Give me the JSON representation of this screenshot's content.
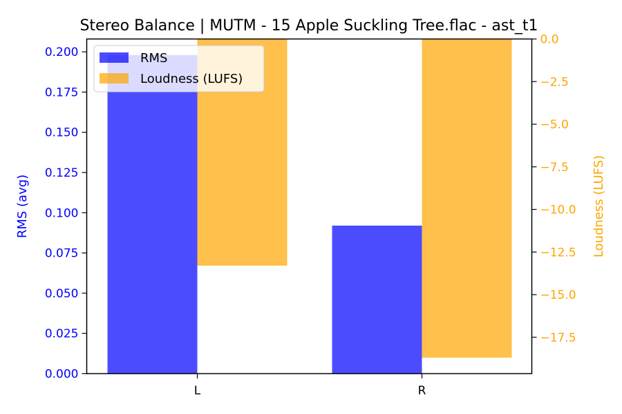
{
  "chart_data": {
    "type": "bar",
    "title": "Stereo Balance | MUTM - 15 Apple Suckling Tree.flac - ast_t1",
    "categories": [
      "L",
      "R"
    ],
    "series": [
      {
        "name": "RMS",
        "axis": "left",
        "values": [
          0.198,
          0.092
        ],
        "color": "#0000ff",
        "opacity": 0.7
      },
      {
        "name": "Loudness (LUFS)",
        "axis": "right",
        "values": [
          -13.3,
          -18.7
        ],
        "color": "#ffa500",
        "opacity": 0.7
      }
    ],
    "y_left": {
      "label": "RMS (avg)",
      "range": [
        0.0,
        0.208
      ],
      "ticks": [
        "0.000",
        "0.025",
        "0.050",
        "0.075",
        "0.100",
        "0.125",
        "0.150",
        "0.175",
        "0.200"
      ],
      "color": "#0000ff"
    },
    "y_right": {
      "label": "Loudness (LUFS)",
      "range": [
        -19.635,
        0.0
      ],
      "ticks": [
        "−17.5",
        "−15.0",
        "−12.5",
        "−10.0",
        "−7.5",
        "−5.0",
        "−2.5",
        "0.0"
      ],
      "color": "#ffa500"
    },
    "grid": false,
    "legend_position": "top-left"
  }
}
